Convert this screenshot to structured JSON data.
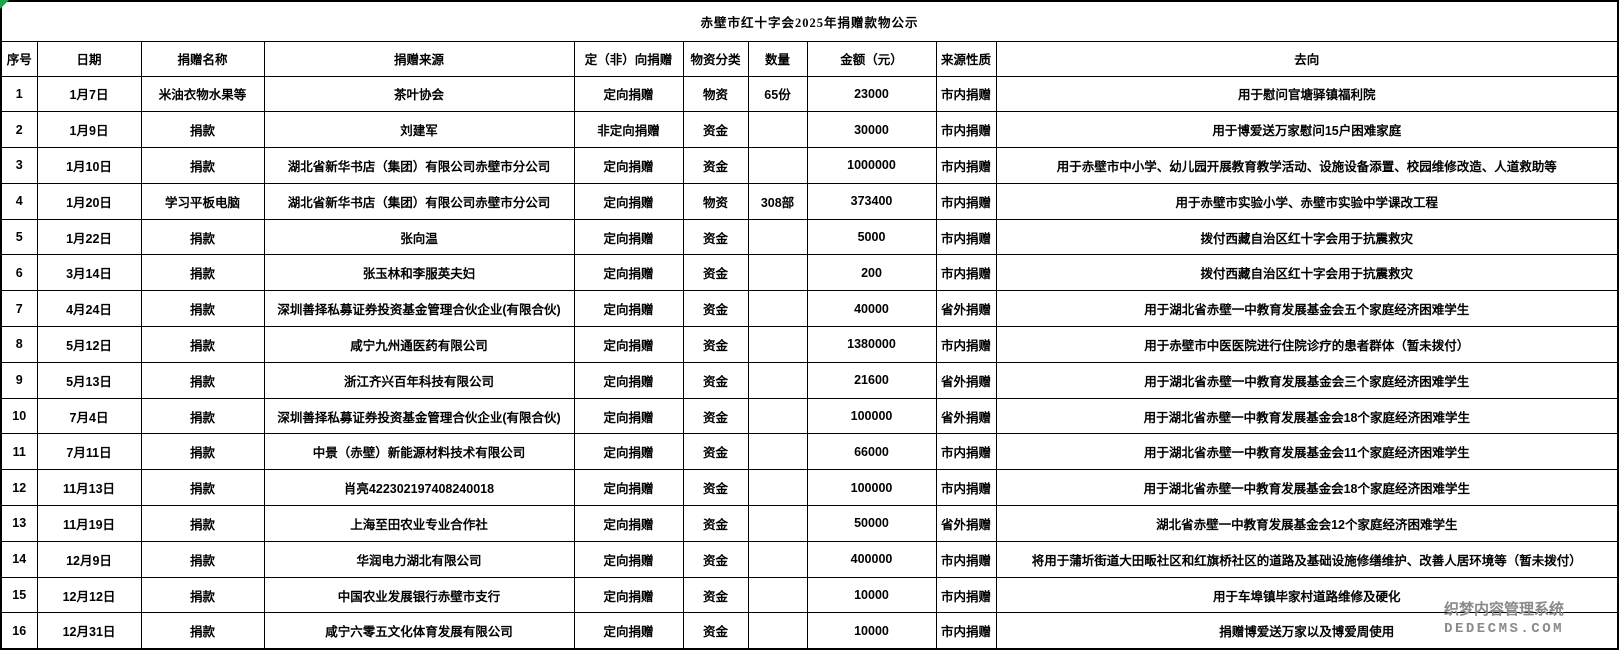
{
  "title": "赤壁市红十字会2025年捐赠款物公示",
  "table": {
    "headers": [
      "序号",
      "日期",
      "捐赠名称",
      "捐赠来源",
      "定（非）向捐赠",
      "物资分类",
      "数量",
      "金额（元）",
      "来源性质",
      "去向"
    ],
    "rows": [
      [
        "1",
        "1月7日",
        "米油衣物水果等",
        "茶叶协会",
        "定向捐赠",
        "物资",
        "65份",
        "23000",
        "市内捐赠",
        "用于慰问官塘驿镇福利院"
      ],
      [
        "2",
        "1月9日",
        "捐款",
        "刘建军",
        "非定向捐赠",
        "资金",
        "",
        "30000",
        "市内捐赠",
        "用于博爱送万家慰问15户困难家庭"
      ],
      [
        "3",
        "1月10日",
        "捐款",
        "湖北省新华书店（集团）有限公司赤壁市分公司",
        "定向捐赠",
        "资金",
        "",
        "1000000",
        "市内捐赠",
        "用于赤壁市中小学、幼儿园开展教育教学活动、设施设备添置、校园维修改造、人道救助等"
      ],
      [
        "4",
        "1月20日",
        "学习平板电脑",
        "湖北省新华书店（集团）有限公司赤壁市分公司",
        "定向捐赠",
        "物资",
        "308部",
        "373400",
        "市内捐赠",
        "用于赤壁市实验小学、赤壁市实验中学课改工程"
      ],
      [
        "5",
        "1月22日",
        "捐款",
        "张向温",
        "定向捐赠",
        "资金",
        "",
        "5000",
        "市内捐赠",
        "拨付西藏自治区红十字会用于抗震救灾"
      ],
      [
        "6",
        "3月14日",
        "捐款",
        "张玉林和李服英夫妇",
        "定向捐赠",
        "资金",
        "",
        "200",
        "市内捐赠",
        "拨付西藏自治区红十字会用于抗震救灾"
      ],
      [
        "7",
        "4月24日",
        "捐款",
        "深圳善择私募证券投资基金管理合伙企业(有限合伙)",
        "定向捐赠",
        "资金",
        "",
        "40000",
        "省外捐赠",
        "用于湖北省赤壁一中教育发展基金会五个家庭经济困难学生"
      ],
      [
        "8",
        "5月12日",
        "捐款",
        "咸宁九州通医药有限公司",
        "定向捐赠",
        "资金",
        "",
        "1380000",
        "市内捐赠",
        "用于赤壁市中医医院进行住院诊疗的患者群体（暂未拨付）"
      ],
      [
        "9",
        "5月13日",
        "捐款",
        "浙江齐兴百年科技有限公司",
        "定向捐赠",
        "资金",
        "",
        "21600",
        "省外捐赠",
        "用于湖北省赤壁一中教育发展基金会三个家庭经济困难学生"
      ],
      [
        "10",
        "7月4日",
        "捐款",
        "深圳善择私募证券投资基金管理合伙企业(有限合伙)",
        "定向捐赠",
        "资金",
        "",
        "100000",
        "省外捐赠",
        "用于湖北省赤壁一中教育发展基金会18个家庭经济困难学生"
      ],
      [
        "11",
        "7月11日",
        "捐款",
        "中景（赤壁）新能源材料技术有限公司",
        "定向捐赠",
        "资金",
        "",
        "66000",
        "市内捐赠",
        "用于湖北省赤壁一中教育发展基金会11个家庭经济困难学生"
      ],
      [
        "12",
        "11月13日",
        "捐款",
        "肖亮422302197408240018",
        "定向捐赠",
        "资金",
        "",
        "100000",
        "市内捐赠",
        "用于湖北省赤壁一中教育发展基金会18个家庭经济困难学生"
      ],
      [
        "13",
        "11月19日",
        "捐款",
        "上海至田农业专业合作社",
        "定向捐赠",
        "资金",
        "",
        "50000",
        "省外捐赠",
        "湖北省赤壁一中教育发展基金会12个家庭经济困难学生"
      ],
      [
        "14",
        "12月9日",
        "捐款",
        "华润电力湖北有限公司",
        "定向捐赠",
        "资金",
        "",
        "400000",
        "市内捐赠",
        "将用于蒲圻街道大田畈社区和红旗桥社区的道路及基础设施修缮维护、改善人居环境等（暂未拨付）"
      ],
      [
        "15",
        "12月12日",
        "捐款",
        "中国农业发展银行赤壁市支行",
        "定向捐赠",
        "资金",
        "",
        "10000",
        "市内捐赠",
        "用于车埠镇毕家村道路维修及硬化"
      ],
      [
        "16",
        "12月31日",
        "捐款",
        "咸宁六零五文化体育发展有限公司",
        "定向捐赠",
        "资金",
        "",
        "10000",
        "市内捐赠",
        "捐赠博爱送万家以及博爱周使用"
      ]
    ]
  },
  "watermark": {
    "line1": "织梦内容管理系统",
    "line2": "DEDECMS.COM"
  },
  "colors": {
    "background": "#ffffff",
    "grid": "#000000",
    "text": "#000000",
    "watermark": "#8a8a8a",
    "corner_flag": "#21a34d"
  }
}
